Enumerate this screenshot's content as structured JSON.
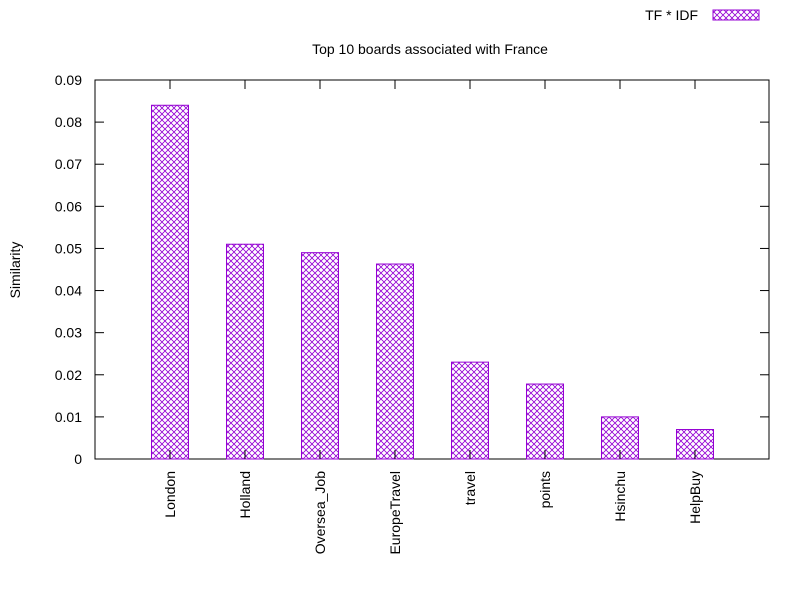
{
  "chart_data": {
    "type": "bar",
    "title": "Top 10 boards associated with France",
    "xlabel": "",
    "ylabel": "Similarity",
    "categories": [
      "London",
      "Holland",
      "Oversea_Job",
      "EuropeTravel",
      "travel",
      "points",
      "Hsinchu",
      "HelpBuy"
    ],
    "series": [
      {
        "name": "TF * IDF",
        "values": [
          0.084,
          0.051,
          0.049,
          0.0463,
          0.023,
          0.0178,
          0.01,
          0.007
        ],
        "color": "#9400d3",
        "pattern": "crosshatch"
      }
    ],
    "ylim": [
      0,
      0.09
    ],
    "yticks": [
      "0",
      "0.01",
      "0.02",
      "0.03",
      "0.04",
      "0.05",
      "0.06",
      "0.07",
      "0.08",
      "0.09"
    ],
    "grid": false,
    "legend_position": "top-right"
  }
}
